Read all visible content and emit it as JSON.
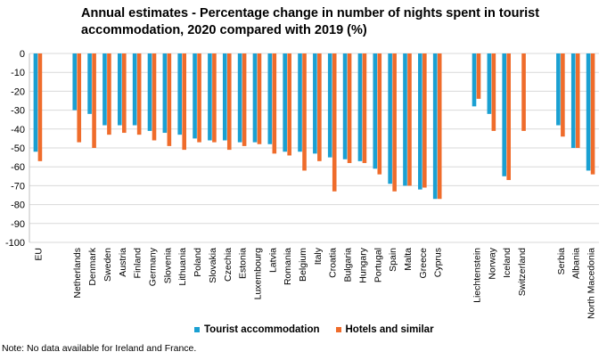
{
  "chart_data": {
    "type": "bar",
    "title": "Annual estimates - Percentage change in number of nights spent in tourist accommodation, 2020 compared with 2019 (%)",
    "ylim": [
      -100,
      0
    ],
    "yticks": [
      0,
      -10,
      -20,
      -30,
      -40,
      -50,
      -60,
      -70,
      -80,
      -90,
      -100
    ],
    "grid": true,
    "legend_position": "bottom",
    "groups": [
      [
        "EU"
      ],
      [
        "Netherlands",
        "Denmark",
        "Sweden",
        "Austria",
        "Finland",
        "Germany",
        "Slovenia",
        "Lithuania",
        "Poland",
        "Slovakia",
        "Czechia",
        "Estonia",
        "Luxembourg",
        "Latvia",
        "Romania",
        "Belgium",
        "Italy",
        "Croatia",
        "Bulgaria",
        "Hungary",
        "Portugal",
        "Spain",
        "Malta",
        "Greece",
        "Cyprus"
      ],
      [
        "Liechtenstein",
        "Norway",
        "Iceland",
        "Switzerland"
      ],
      [
        "Serbia",
        "Albania",
        "North Macedonia"
      ]
    ],
    "categories": [
      "EU",
      "Netherlands",
      "Denmark",
      "Sweden",
      "Austria",
      "Finland",
      "Germany",
      "Slovenia",
      "Lithuania",
      "Poland",
      "Slovakia",
      "Czechia",
      "Estonia",
      "Luxembourg",
      "Latvia",
      "Romania",
      "Belgium",
      "Italy",
      "Croatia",
      "Bulgaria",
      "Hungary",
      "Portugal",
      "Spain",
      "Malta",
      "Greece",
      "Cyprus",
      "Liechtenstein",
      "Norway",
      "Iceland",
      "Switzerland",
      "Serbia",
      "Albania",
      "North Macedonia"
    ],
    "series": [
      {
        "name": "Tourist accommodation",
        "color": "#1aa0d2",
        "values": [
          -52,
          -30,
          -32,
          -38,
          -38,
          -38,
          -41,
          -42,
          -43,
          -45,
          -46,
          -46,
          -47,
          -47,
          -48,
          -52,
          -52,
          -53,
          -55,
          -56,
          -57,
          -61,
          -69,
          -70,
          -72,
          -77,
          -28,
          -32,
          -65,
          null,
          -38,
          -50,
          -62
        ]
      },
      {
        "name": "Hotels and similar",
        "color": "#ef6c2b",
        "values": [
          -57,
          -47,
          -50,
          -43,
          -42,
          -43,
          -46,
          -49,
          -51,
          -47,
          -47,
          -51,
          -49,
          -48,
          -53,
          -54,
          -62,
          -57,
          -73,
          -58,
          -58,
          -64,
          -73,
          -70,
          -71,
          -77,
          -24,
          -41,
          -67,
          -41,
          -44,
          -50,
          -64
        ]
      }
    ],
    "note": "Note: No data available for Ireland and France."
  }
}
